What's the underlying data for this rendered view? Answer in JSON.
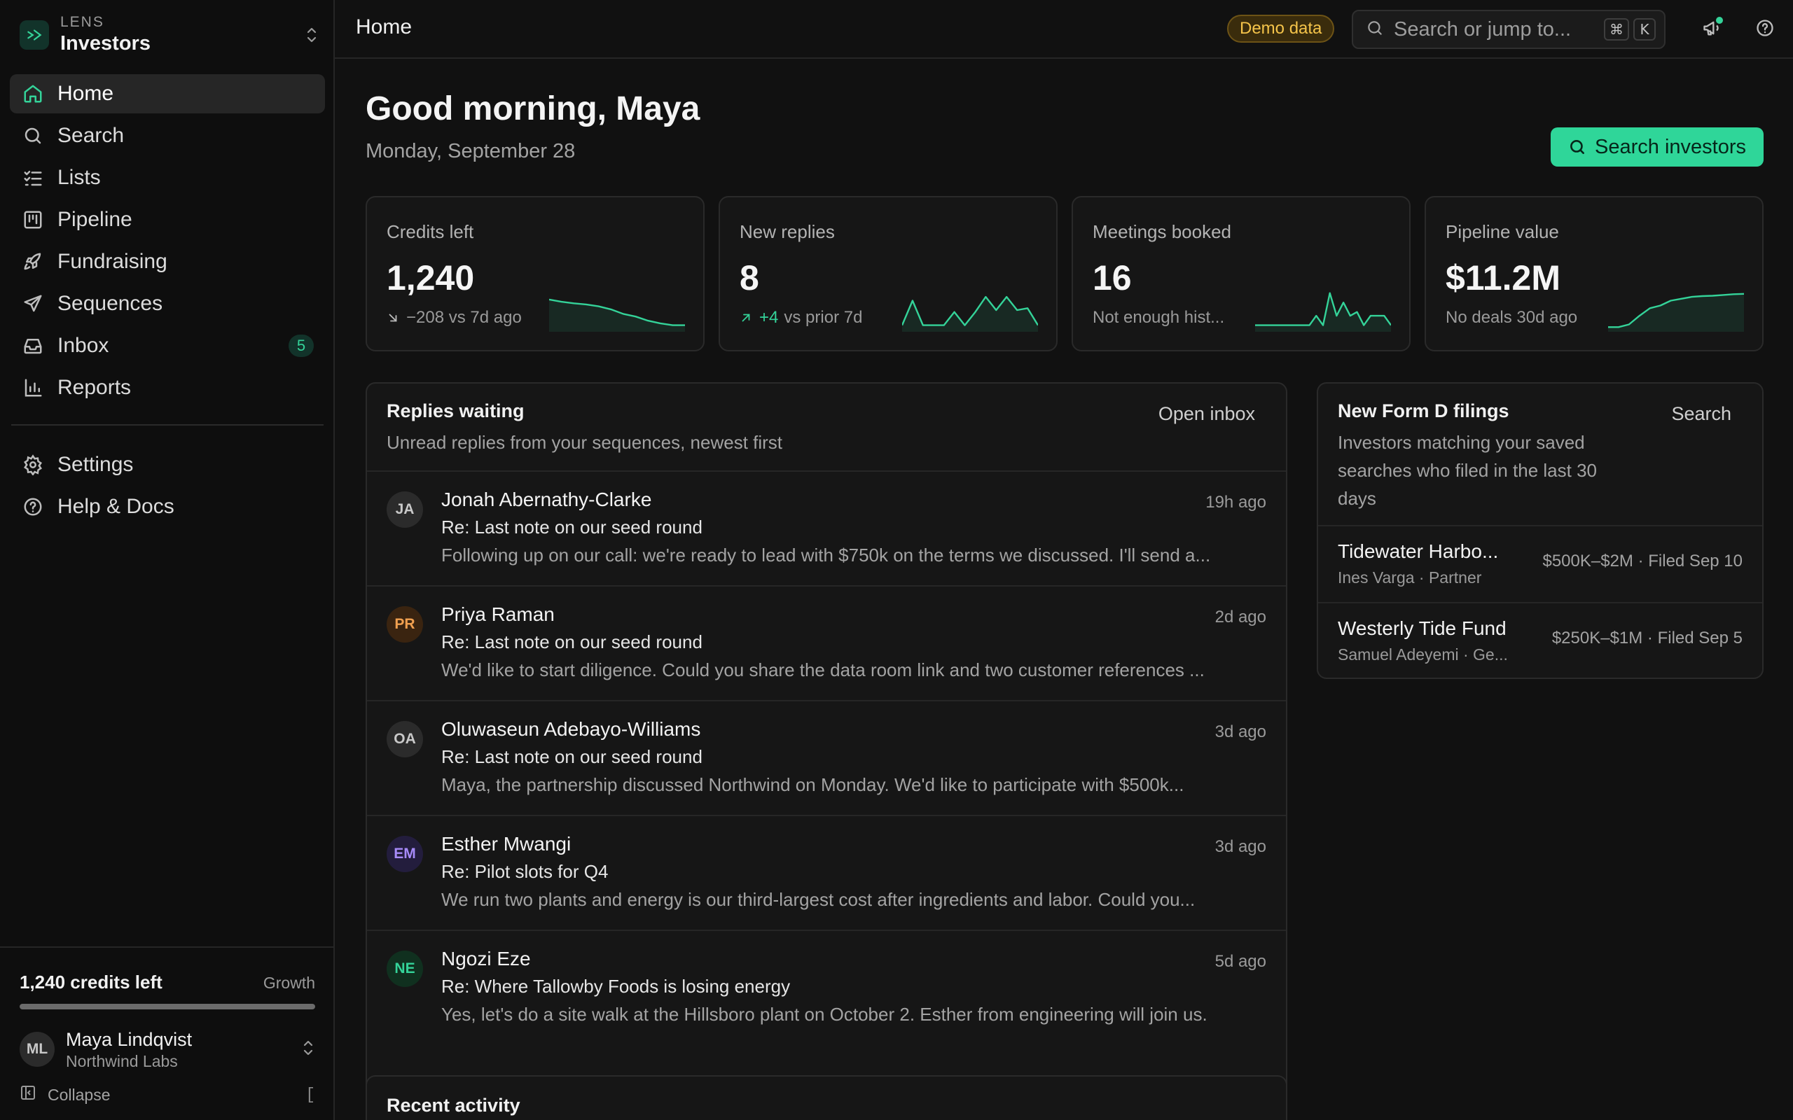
{
  "brand": {
    "kicker": "LENS",
    "name": "Investors"
  },
  "nav": {
    "items": [
      {
        "label": "Home",
        "icon": "home-icon",
        "active": true
      },
      {
        "label": "Search",
        "icon": "search-icon"
      },
      {
        "label": "Lists",
        "icon": "list-check-icon"
      },
      {
        "label": "Pipeline",
        "icon": "kanban-icon"
      },
      {
        "label": "Fundraising",
        "icon": "rocket-icon"
      },
      {
        "label": "Sequences",
        "icon": "send-icon"
      },
      {
        "label": "Inbox",
        "icon": "inbox-icon",
        "badge": "5"
      },
      {
        "label": "Reports",
        "icon": "bar-chart-icon"
      }
    ],
    "secondary": [
      {
        "label": "Settings",
        "icon": "gear-icon"
      },
      {
        "label": "Help & Docs",
        "icon": "help-circle-icon"
      }
    ]
  },
  "sidebar_footer": {
    "credits_label": "1,240 credits left",
    "plan": "Growth",
    "user_initials": "ML",
    "user_name": "Maya Lindqvist",
    "user_org": "Northwind Labs",
    "collapse_label": "Collapse",
    "collapse_shortcut": "["
  },
  "topbar": {
    "title": "Home",
    "demo_badge": "Demo data",
    "search_placeholder": "Search or jump to...",
    "shortcut_mod": "⌘",
    "shortcut_key": "K"
  },
  "header": {
    "greeting": "Good morning, Maya",
    "date": "Monday, September 28",
    "primary_action": "Search investors"
  },
  "stats": [
    {
      "label": "Credits left",
      "value": "1,240",
      "delta": "",
      "sub": "−208 vs 7d ago",
      "trend": "down",
      "spark": [
        0.78,
        0.72,
        0.68,
        0.65,
        0.6,
        0.52,
        0.4,
        0.33,
        0.22,
        0.15,
        0.1,
        0.1
      ]
    },
    {
      "label": "New replies",
      "value": "8",
      "delta": "+4",
      "sub": "vs prior 7d",
      "trend": "up",
      "spark": [
        0.1,
        0.75,
        0.1,
        0.1,
        0.1,
        0.45,
        0.1,
        0.45,
        0.85,
        0.5,
        0.85,
        0.5,
        0.55,
        0.1
      ]
    },
    {
      "label": "Meetings booked",
      "value": "16",
      "delta": "",
      "sub": "Not enough hist...",
      "trend": "none",
      "spark": [
        0.1,
        0.1,
        0.1,
        0.1,
        0.1,
        0.1,
        0.1,
        0.1,
        0.1,
        0.35,
        0.1,
        0.95,
        0.35,
        0.7,
        0.35,
        0.45,
        0.1,
        0.35,
        0.35,
        0.35,
        0.1
      ]
    },
    {
      "label": "Pipeline value",
      "value": "$11.2M",
      "delta": "",
      "sub": "No deals 30d ago",
      "trend": "none",
      "spark": [
        0.05,
        0.05,
        0.12,
        0.35,
        0.55,
        0.62,
        0.75,
        0.8,
        0.85,
        0.87,
        0.88,
        0.9,
        0.92,
        0.93
      ]
    }
  ],
  "replies": {
    "title": "Replies waiting",
    "subtitle": "Unread replies from your sequences, newest first",
    "action": "Open inbox",
    "items": [
      {
        "initials": "JA",
        "name": "Jonah Abernathy-Clarke",
        "time": "19h ago",
        "subject": "Re: Last note on our seed round",
        "preview": "Following up on our call: we're ready to lead with $750k on the terms we discussed. I'll send a...",
        "color": "#2b2b2b",
        "text_color": "#c9c9c9"
      },
      {
        "initials": "PR",
        "name": "Priya Raman",
        "time": "2d ago",
        "subject": "Re: Last note on our seed round",
        "preview": "We'd like to start diligence. Could you share the data room link and two customer references ...",
        "color": "#3a2410",
        "text_color": "#f0a050"
      },
      {
        "initials": "OA",
        "name": "Oluwaseun Adebayo-Williams",
        "time": "3d ago",
        "subject": "Re: Last note on our seed round",
        "preview": "Maya, the partnership discussed Northwind on Monday. We'd like to participate with $500k...",
        "color": "#2b2b2b",
        "text_color": "#c9c9c9"
      },
      {
        "initials": "EM",
        "name": "Esther Mwangi",
        "time": "3d ago",
        "subject": "Re: Pilot slots for Q4",
        "preview": "We run two plants and energy is our third-largest cost after ingredients and labor. Could you...",
        "color": "#231d3d",
        "text_color": "#a78bfa"
      },
      {
        "initials": "NE",
        "name": "Ngozi Eze",
        "time": "5d ago",
        "subject": "Re: Where Tallowby Foods is losing energy",
        "preview": "Yes, let's do a site walk at the Hillsboro plant on October 2. Esther from engineering will join us.",
        "color": "#10301f",
        "text_color": "#34d399"
      }
    ]
  },
  "filings": {
    "title": "New Form D filings",
    "subtitle": "Investors matching your saved searches who filed in the last 30 days",
    "action": "Search",
    "items": [
      {
        "name": "Tidewater Harbo...",
        "person": "Ines Varga · Partner",
        "meta": "$500K–$2M · Filed Sep 10"
      },
      {
        "name": "Westerly Tide Fund",
        "person": "Samuel Adeyemi · Ge...",
        "meta": "$250K–$1M · Filed Sep 5"
      }
    ]
  },
  "activity": {
    "title": "Recent activity"
  },
  "colors": {
    "accent": "#2fd699",
    "background": "#111111",
    "card": "#161616"
  }
}
